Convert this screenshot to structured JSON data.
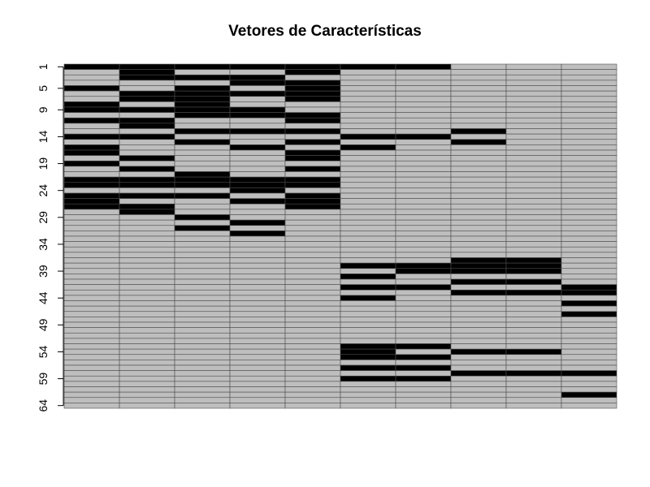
{
  "chart_data": {
    "type": "heatmap",
    "title": "Vetores de Características",
    "xlabel": "",
    "ylabel": "",
    "n_columns": 10,
    "n_rows": 64,
    "y_tick_labels": [
      "1",
      "5",
      "9",
      "14",
      "19",
      "24",
      "29",
      "34",
      "39",
      "44",
      "49",
      "54",
      "59",
      "64"
    ],
    "value_colors": {
      "0": "#BEBEBE",
      "1": "#000000"
    },
    "grid_color": "#4D4D4D",
    "active_rows_by_column": [
      [
        1,
        5,
        8,
        9,
        11,
        14,
        16,
        17,
        19,
        22,
        23,
        25,
        26,
        27
      ],
      [
        1,
        2,
        3,
        6,
        7,
        9,
        11,
        12,
        14,
        18,
        20,
        22,
        23,
        25,
        27,
        28
      ],
      [
        1,
        3,
        5,
        6,
        7,
        8,
        9,
        10,
        13,
        15,
        21,
        22,
        23,
        25,
        29,
        31
      ],
      [
        1,
        3,
        4,
        6,
        9,
        10,
        13,
        16,
        22,
        23,
        24,
        26,
        30,
        32
      ],
      [
        1,
        2,
        4,
        5,
        6,
        7,
        10,
        11,
        13,
        15,
        17,
        18,
        20,
        22,
        23,
        25,
        26,
        27
      ],
      [
        1,
        14,
        16,
        38,
        40,
        42,
        44,
        53,
        54,
        55,
        57,
        59
      ],
      [
        1,
        14,
        38,
        39,
        42,
        53,
        55,
        57,
        59
      ],
      [
        13,
        15,
        37,
        38,
        39,
        41,
        43,
        54,
        58
      ],
      [
        37,
        38,
        39,
        41,
        43,
        54,
        58
      ],
      [
        42,
        43,
        45,
        47,
        58,
        62
      ]
    ]
  }
}
